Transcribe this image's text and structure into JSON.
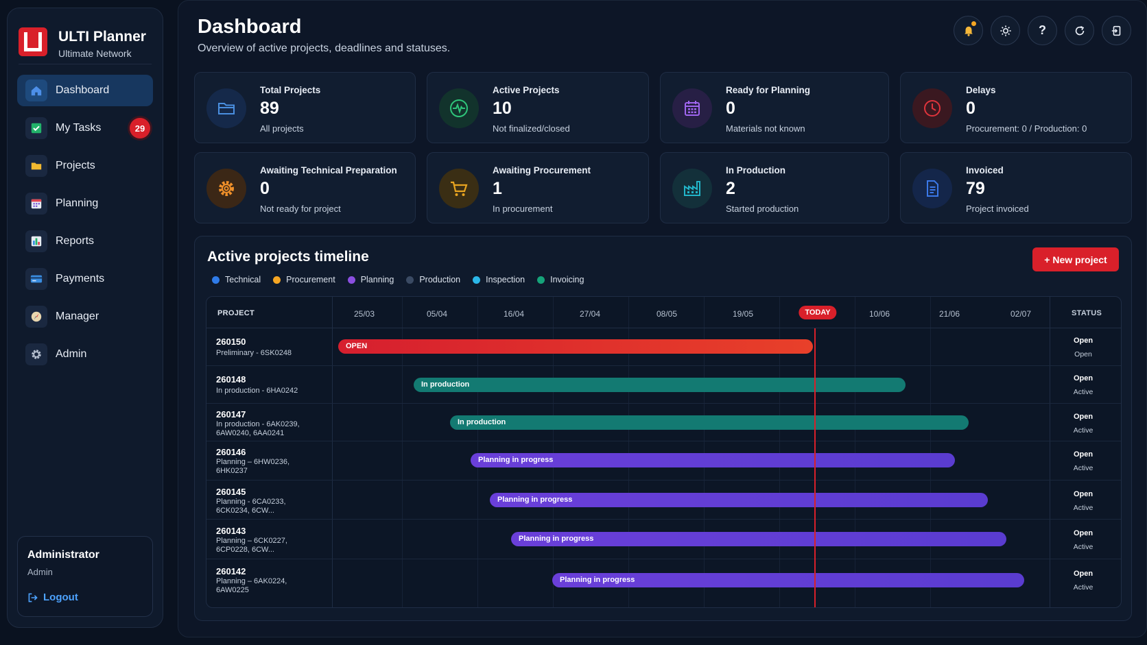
{
  "brand": {
    "title": "ULTI Planner",
    "subtitle": "Ultimate Network"
  },
  "sidebar": {
    "items": [
      {
        "label": "Dashboard",
        "icon": "home-icon",
        "active": true
      },
      {
        "label": "My Tasks",
        "icon": "check-icon",
        "badge": "29"
      },
      {
        "label": "Projects",
        "icon": "folder-icon"
      },
      {
        "label": "Planning",
        "icon": "calendar-icon"
      },
      {
        "label": "Reports",
        "icon": "bar-chart-icon"
      },
      {
        "label": "Payments",
        "icon": "credit-card-icon"
      },
      {
        "label": "Manager",
        "icon": "compass-icon"
      },
      {
        "label": "Admin",
        "icon": "gear-icon"
      }
    ],
    "user": {
      "name": "Administrator",
      "role": "Admin",
      "logout_label": "Logout"
    }
  },
  "header": {
    "title": "Dashboard",
    "subtitle": "Overview of active projects, deadlines and statuses.",
    "actions": [
      "bell-icon",
      "sun-icon",
      "help-icon",
      "refresh-icon",
      "exit-icon"
    ]
  },
  "stats": [
    {
      "title": "Total Projects",
      "value": "89",
      "sub": "All projects",
      "icon": "folder-icon",
      "color": "#4a8fe0"
    },
    {
      "title": "Active Projects",
      "value": "10",
      "sub": "Not finalized/closed",
      "icon": "pulse-icon",
      "color": "#2fc57a"
    },
    {
      "title": "Ready for Planning",
      "value": "0",
      "sub": "Materials not known",
      "icon": "calendar-icon",
      "color": "#a066f0"
    },
    {
      "title": "Delays",
      "value": "0",
      "sub": "Procurement: 0 / Production: 0",
      "icon": "clock-icon",
      "color": "#e0343c"
    },
    {
      "title": "Awaiting Technical Preparation",
      "value": "0",
      "sub": "Not ready for project",
      "icon": "gear-icon",
      "color": "#f0902a"
    },
    {
      "title": "Awaiting Procurement",
      "value": "1",
      "sub": "In procurement",
      "icon": "cart-icon",
      "color": "#e8a420"
    },
    {
      "title": "In Production",
      "value": "2",
      "sub": "Started production",
      "icon": "factory-icon",
      "color": "#22b5c9"
    },
    {
      "title": "Invoiced",
      "value": "79",
      "sub": "Project invoiced",
      "icon": "document-icon",
      "color": "#3b78e8"
    }
  ],
  "timeline": {
    "title": "Active projects timeline",
    "new_button": "+ New project",
    "legend": [
      {
        "label": "Technical",
        "color": "#2f7be8"
      },
      {
        "label": "Procurement",
        "color": "#f5a623"
      },
      {
        "label": "Planning",
        "color": "#8b4fe0"
      },
      {
        "label": "Production",
        "color": "#3a4a63"
      },
      {
        "label": "Inspection",
        "color": "#2bb7e8"
      },
      {
        "label": "Invoicing",
        "color": "#16a37a"
      }
    ],
    "project_header": "PROJECT",
    "status_header": "STATUS",
    "today_label": "TODAY",
    "dates": [
      "25/03",
      "05/04",
      "16/04",
      "27/04",
      "08/05",
      "19/05",
      "10/06",
      "21/06",
      "02/07"
    ],
    "rows": [
      {
        "id": "260150",
        "desc": "Preliminary - 6SK0248",
        "bar_label": "OPEN",
        "phase": "open",
        "status": "Open",
        "status_sub": "Open"
      },
      {
        "id": "260148",
        "desc": "In production - 6HA0242",
        "bar_label": "In production",
        "phase": "prod",
        "status": "Open",
        "status_sub": "Active"
      },
      {
        "id": "260147",
        "desc": "In production - 6AK0239, 6AW0240, 6AA0241",
        "bar_label": "In production",
        "phase": "prod",
        "status": "Open",
        "status_sub": "Active"
      },
      {
        "id": "260146",
        "desc": "Planning – 6HW0236, 6HK0237",
        "bar_label": "Planning in progress",
        "phase": "plan",
        "status": "Open",
        "status_sub": "Active"
      },
      {
        "id": "260145",
        "desc": "Planning - 6CA0233, 6CK0234, 6CW...",
        "bar_label": "Planning in progress",
        "phase": "plan",
        "status": "Open",
        "status_sub": "Active"
      },
      {
        "id": "260143",
        "desc": "Planning – 6CK0227, 6CP0228, 6CW...",
        "bar_label": "Planning in progress",
        "phase": "plan",
        "status": "Open",
        "status_sub": "Active"
      },
      {
        "id": "260142",
        "desc": "Planning – 6AK0224, 6AW0225",
        "bar_label": "Planning in progress",
        "phase": "plan",
        "status": "Open",
        "status_sub": "Active"
      }
    ]
  }
}
